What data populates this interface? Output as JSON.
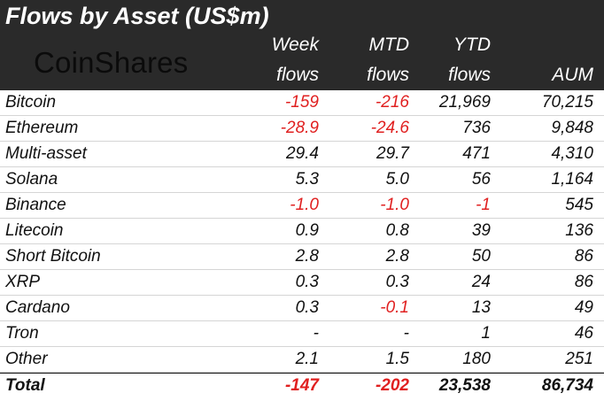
{
  "title": "Flows by Asset (US$m)",
  "logo_text": "CoinShares",
  "columns": {
    "week": [
      "Week",
      "flows"
    ],
    "mtd": [
      "MTD",
      "flows"
    ],
    "ytd": [
      "YTD",
      "flows"
    ],
    "aum": [
      "",
      "AUM"
    ]
  },
  "rows": [
    {
      "asset": "Bitcoin",
      "week": "-159",
      "mtd": "-216",
      "ytd": "21,969",
      "aum": "70,215"
    },
    {
      "asset": "Ethereum",
      "week": "-28.9",
      "mtd": "-24.6",
      "ytd": "736",
      "aum": "9,848"
    },
    {
      "asset": "Multi-asset",
      "week": "29.4",
      "mtd": "29.7",
      "ytd": "471",
      "aum": "4,310"
    },
    {
      "asset": "Solana",
      "week": "5.3",
      "mtd": "5.0",
      "ytd": "56",
      "aum": "1,164"
    },
    {
      "asset": "Binance",
      "week": "-1.0",
      "mtd": "-1.0",
      "ytd": "-1",
      "aum": "545"
    },
    {
      "asset": "Litecoin",
      "week": "0.9",
      "mtd": "0.8",
      "ytd": "39",
      "aum": "136"
    },
    {
      "asset": "Short Bitcoin",
      "week": "2.8",
      "mtd": "2.8",
      "ytd": "50",
      "aum": "86"
    },
    {
      "asset": "XRP",
      "week": "0.3",
      "mtd": "0.3",
      "ytd": "24",
      "aum": "86"
    },
    {
      "asset": "Cardano",
      "week": "0.3",
      "mtd": "-0.1",
      "ytd": "13",
      "aum": "49"
    },
    {
      "asset": "Tron",
      "week": "-",
      "mtd": "-",
      "ytd": "1",
      "aum": "46"
    },
    {
      "asset": "Other",
      "week": "2.1",
      "mtd": "1.5",
      "ytd": "180",
      "aum": "251"
    }
  ],
  "total": {
    "asset": "Total",
    "week": "-147",
    "mtd": "-202",
    "ytd": "23,538",
    "aum": "86,734"
  },
  "colors": {
    "header_bg": "#2a2a2a",
    "negative": "#e02020",
    "text": "#111111"
  }
}
